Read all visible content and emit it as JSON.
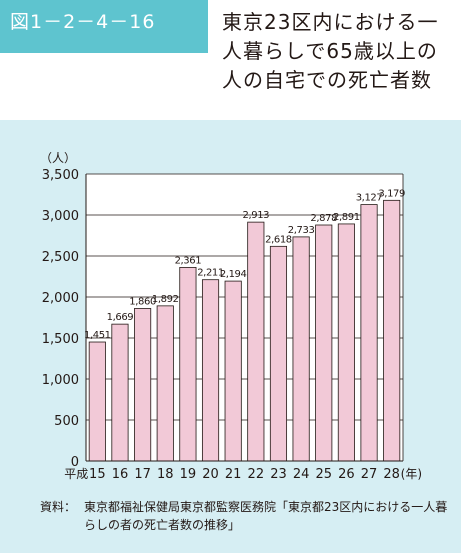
{
  "figure": {
    "label": "図1－2－4－16",
    "title": "東京23区内における一人暮らしで65歳以上の人の自宅での死亡者数"
  },
  "chart_data": {
    "type": "bar",
    "title": "東京23区内における一人暮らしで65歳以上の人の自宅での死亡者数",
    "y_unit": "（人）",
    "x_unit": "(年)",
    "x_era_prefix": "平成",
    "categories": [
      "15",
      "16",
      "17",
      "18",
      "19",
      "20",
      "21",
      "22",
      "23",
      "24",
      "25",
      "26",
      "27",
      "28"
    ],
    "values": [
      1451,
      1669,
      1860,
      1892,
      2361,
      2211,
      2194,
      2913,
      2618,
      2733,
      2878,
      2891,
      3127,
      3179
    ],
    "value_labels": [
      "1,451",
      "1,669",
      "1,860",
      "1,892",
      "2,361",
      "2,211",
      "2,194",
      "2,913",
      "2,618",
      "2,733",
      "2,878",
      "2,891",
      "3,127",
      "3,179"
    ],
    "y_ticks": [
      "0",
      "500",
      "1,000",
      "1,500",
      "2,000",
      "2,500",
      "3,000",
      "3,500"
    ],
    "ylim": [
      0,
      3500
    ],
    "grid": true,
    "legend": "none",
    "colors": {
      "bar_fill": "#f2c9d7",
      "bar_stroke": "#231815",
      "panel_bg": "#d6eef3",
      "plot_bg": "#ffffff",
      "accent": "#5ec4cf"
    }
  },
  "source": {
    "label": "資料：",
    "text": "東京都福祉保健局東京都監察医務院「東京都23区内における一人暮らしの者の死亡者数の推移」"
  }
}
